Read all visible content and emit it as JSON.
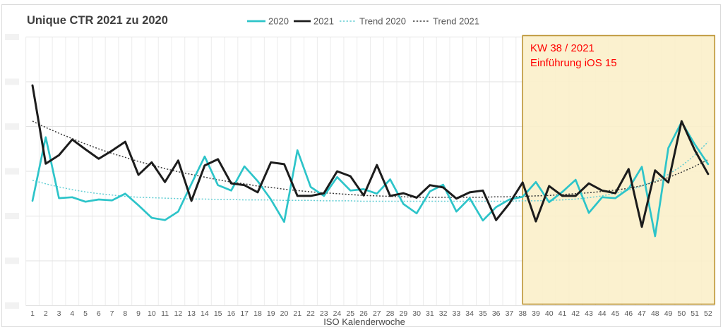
{
  "title": "Unique CTR 2021 zu 2020",
  "frame": {
    "border_color": "#dbdbdb"
  },
  "legend": [
    {
      "label": "2020",
      "color": "#2dc4c9",
      "style": "solid"
    },
    {
      "label": "2021",
      "color": "#1c1c1c",
      "style": "solid"
    },
    {
      "label": "Trend 2020",
      "color": "#63ced4",
      "style": "dotted"
    },
    {
      "label": "Trend 2021",
      "color": "#3b3b3b",
      "style": "dotted"
    }
  ],
  "annotation": {
    "line1": "KW 38 / 2021",
    "line2": "Einführung iOS 15",
    "text_color": "#ff0000",
    "region_start_week": 38,
    "region_end_week": 52,
    "region_fill": "#fbf0ca",
    "region_border": "#bc9433"
  },
  "x_axis": {
    "title": "ISO Kalenderwoche"
  },
  "y_axis": {
    "labels_redacted": true,
    "redaction_box_color": "#f2f2f2",
    "gridline_count": 7
  },
  "chart_data": {
    "type": "line",
    "title": "Unique CTR 2021 zu 2020",
    "xlabel": "ISO Kalenderwoche",
    "ylabel": "",
    "ylim": [
      0,
      6
    ],
    "grid": true,
    "legend_position": "top",
    "y_unit": "relative units (one unit = one gridline; y-axis tick labels are blurred/redacted in the source image)",
    "x": [
      1,
      2,
      3,
      4,
      5,
      6,
      7,
      8,
      9,
      10,
      11,
      12,
      13,
      14,
      15,
      16,
      17,
      18,
      19,
      20,
      21,
      22,
      23,
      24,
      25,
      26,
      27,
      28,
      29,
      30,
      31,
      32,
      33,
      34,
      35,
      36,
      37,
      38,
      39,
      40,
      41,
      42,
      43,
      44,
      45,
      46,
      47,
      48,
      49,
      50,
      51,
      52
    ],
    "series": [
      {
        "name": "Trend 2020",
        "color": "#63ced4",
        "style": "dotted",
        "values": [
          2.8,
          2.72,
          2.65,
          2.59,
          2.54,
          2.5,
          2.47,
          2.44,
          2.42,
          2.41,
          2.4,
          2.39,
          2.38,
          2.38,
          2.37,
          2.37,
          2.36,
          2.36,
          2.36,
          2.35,
          2.35,
          2.35,
          2.34,
          2.34,
          2.34,
          2.33,
          2.33,
          2.33,
          2.33,
          2.33,
          2.33,
          2.33,
          2.33,
          2.33,
          2.33,
          2.33,
          2.33,
          2.34,
          2.34,
          2.35,
          2.36,
          2.38,
          2.41,
          2.45,
          2.51,
          2.58,
          2.67,
          2.79,
          2.93,
          3.12,
          3.36,
          3.66
        ]
      },
      {
        "name": "Trend 2021",
        "color": "#3b3b3b",
        "style": "dotted",
        "values": [
          4.12,
          3.98,
          3.85,
          3.73,
          3.61,
          3.5,
          3.4,
          3.31,
          3.22,
          3.14,
          3.06,
          2.99,
          2.93,
          2.87,
          2.81,
          2.76,
          2.72,
          2.67,
          2.64,
          2.6,
          2.57,
          2.54,
          2.52,
          2.5,
          2.48,
          2.46,
          2.45,
          2.44,
          2.43,
          2.42,
          2.42,
          2.42,
          2.42,
          2.42,
          2.42,
          2.43,
          2.43,
          2.44,
          2.45,
          2.46,
          2.48,
          2.5,
          2.52,
          2.55,
          2.58,
          2.62,
          2.68,
          2.76,
          2.86,
          2.98,
          3.11,
          3.26
        ]
      },
      {
        "name": "2020",
        "color": "#2dc4c9",
        "style": "solid",
        "values": [
          2.34,
          3.76,
          2.4,
          2.42,
          2.32,
          2.37,
          2.35,
          2.5,
          2.24,
          1.96,
          1.91,
          2.1,
          2.72,
          3.33,
          2.69,
          2.57,
          3.11,
          2.78,
          2.37,
          1.87,
          3.47,
          2.65,
          2.45,
          2.87,
          2.57,
          2.6,
          2.5,
          2.82,
          2.27,
          2.06,
          2.55,
          2.7,
          2.1,
          2.4,
          1.9,
          2.2,
          2.37,
          2.43,
          2.76,
          2.31,
          2.54,
          2.81,
          2.07,
          2.42,
          2.4,
          2.61,
          3.1,
          1.55,
          3.52,
          4.1,
          3.6,
          3.16
        ]
      },
      {
        "name": "2021",
        "color": "#1c1c1c",
        "style": "solid",
        "values": [
          4.92,
          3.17,
          3.36,
          3.71,
          3.49,
          3.28,
          3.46,
          3.66,
          2.92,
          3.2,
          2.76,
          3.24,
          2.34,
          3.13,
          3.27,
          2.73,
          2.69,
          2.53,
          3.2,
          3.16,
          2.45,
          2.45,
          2.51,
          3.0,
          2.89,
          2.46,
          3.14,
          2.45,
          2.51,
          2.41,
          2.69,
          2.64,
          2.39,
          2.53,
          2.57,
          1.91,
          2.28,
          2.75,
          1.88,
          2.67,
          2.45,
          2.45,
          2.73,
          2.57,
          2.51,
          3.05,
          1.76,
          3.02,
          2.75,
          4.12,
          3.47,
          2.94
        ]
      }
    ]
  }
}
